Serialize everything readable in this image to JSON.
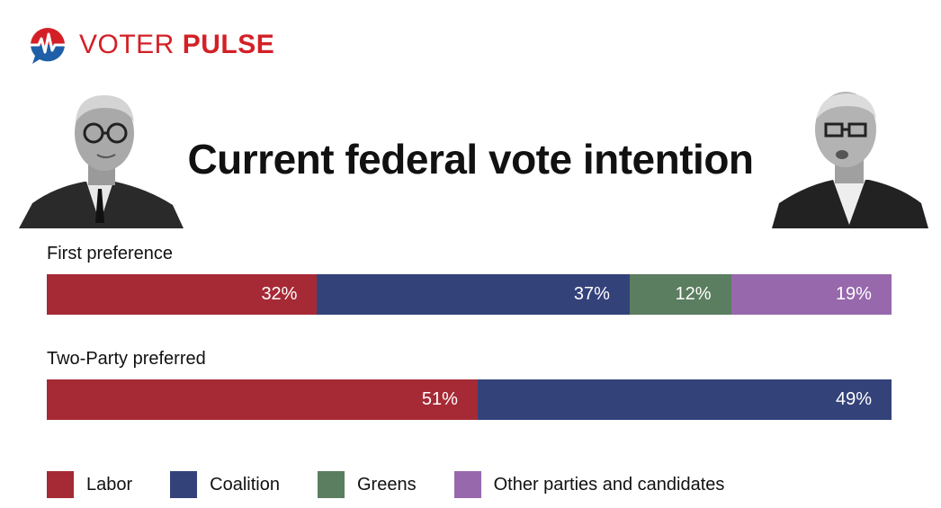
{
  "brand": {
    "name_part1": "VOTER",
    "name_part2": "PULSE"
  },
  "icons": {
    "logo": "heartbeat-speech-bubble-logo",
    "left_photo": "politician-portrait-left",
    "right_photo": "politician-portrait-right"
  },
  "colors": {
    "labor": "#a62a35",
    "coalition": "#34427a",
    "greens": "#5b7d60",
    "other": "#9868ad",
    "brand_red": "#d32027",
    "brand_blue": "#1f5fa8"
  },
  "chart_data": {
    "type": "bar",
    "title": "Current federal vote intention",
    "stacked": true,
    "orientation": "horizontal",
    "legend_position": "bottom",
    "series": [
      {
        "name": "Labor",
        "color": "#a62a35"
      },
      {
        "name": "Coalition",
        "color": "#34427a"
      },
      {
        "name": "Greens",
        "color": "#5b7d60"
      },
      {
        "name": "Other parties and candidates",
        "color": "#9868ad"
      }
    ],
    "rows": [
      {
        "label": "First preference",
        "segments": [
          {
            "series": "Labor",
            "value": 32,
            "label": "32%"
          },
          {
            "series": "Coalition",
            "value": 37,
            "label": "37%"
          },
          {
            "series": "Greens",
            "value": 12,
            "label": "12%"
          },
          {
            "series": "Other parties and candidates",
            "value": 19,
            "label": "19%"
          }
        ]
      },
      {
        "label": "Two-Party preferred",
        "segments": [
          {
            "series": "Labor",
            "value": 51,
            "label": "51%"
          },
          {
            "series": "Coalition",
            "value": 49,
            "label": "49%"
          }
        ]
      }
    ]
  }
}
